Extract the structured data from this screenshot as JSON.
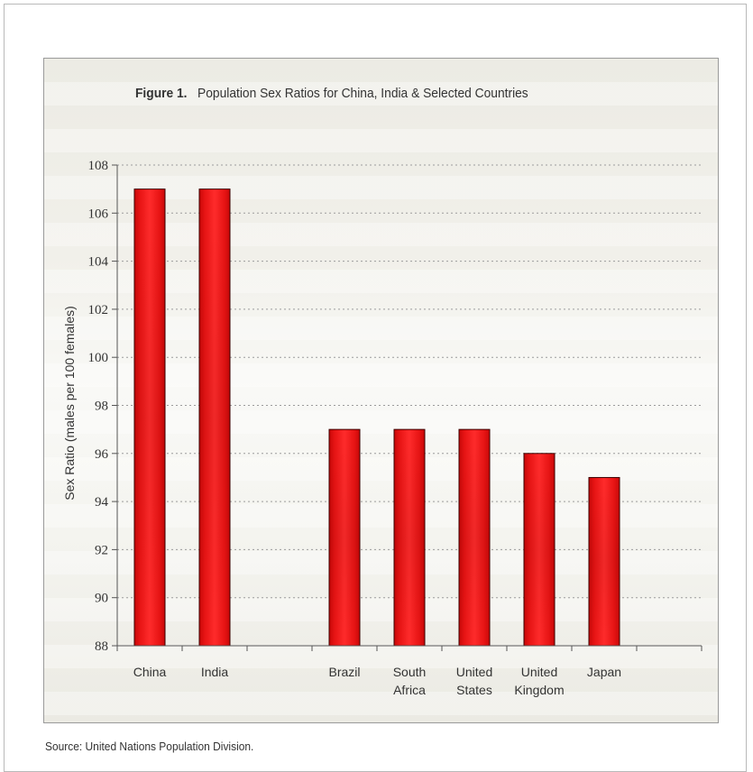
{
  "chart_data": {
    "type": "bar",
    "title_prefix": "Figure 1.",
    "title": "Population Sex Ratios for China, India & Selected Countries",
    "xlabel": "",
    "ylabel": "Sex Ratio (males per 100 females)",
    "ylim": [
      88,
      108
    ],
    "yticks": [
      88,
      90,
      92,
      94,
      96,
      98,
      100,
      102,
      104,
      106,
      108
    ],
    "grid": true,
    "categories": [
      {
        "label": [
          "China"
        ],
        "value": 107
      },
      {
        "label": [
          "India"
        ],
        "value": 107
      },
      {
        "label": [
          ""
        ],
        "value": null
      },
      {
        "label": [
          "Brazil"
        ],
        "value": 97
      },
      {
        "label": [
          "South",
          "Africa"
        ],
        "value": 97
      },
      {
        "label": [
          "United",
          "States"
        ],
        "value": 97
      },
      {
        "label": [
          "United",
          "Kingdom"
        ],
        "value": 96
      },
      {
        "label": [
          "Japan"
        ],
        "value": 95
      },
      {
        "label": [
          ""
        ],
        "value": null
      }
    ],
    "bar_color": "#e81010"
  },
  "source": "Source: United Nations Population Division."
}
